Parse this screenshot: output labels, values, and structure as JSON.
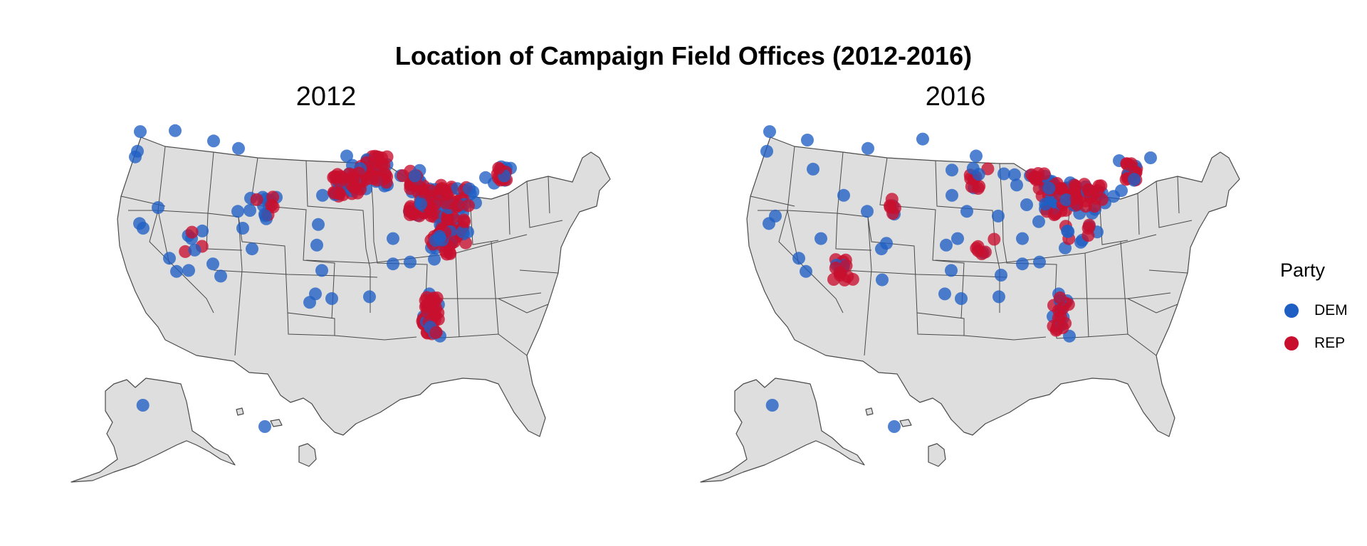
{
  "title": "Location of Campaign Field Offices (2012-2016)",
  "legend": {
    "title": "Party",
    "items": [
      {
        "label": "DEM",
        "color": "#1f5fc4"
      },
      {
        "label": "REP",
        "color": "#c8102e"
      }
    ]
  },
  "colors": {
    "DEM": "#1f5fc4",
    "REP": "#c8102e",
    "land": "#dedede",
    "border": "#4a4a4a"
  },
  "chart_data": {
    "type": "scatter",
    "panels": [
      {
        "label": "2012",
        "points": [
          [
            "DEM",
            -122.3,
            47.6
          ],
          [
            "DEM",
            -122.7,
            45.5
          ],
          [
            "DEM",
            -123.0,
            44.9
          ],
          [
            "DEM",
            -117.4,
            47.7
          ],
          [
            "DEM",
            -122.4,
            37.8
          ],
          [
            "DEM",
            -121.9,
            37.3
          ],
          [
            "DEM",
            -118.2,
            34.1
          ],
          [
            "DEM",
            -117.2,
            32.7
          ],
          [
            "DEM",
            -115.1,
            36.2
          ],
          [
            "DEM",
            -119.8,
            39.5
          ],
          [
            "DEM",
            -105.0,
            39.7
          ],
          [
            "DEM",
            -104.8,
            38.8
          ],
          [
            "DEM",
            -105.1,
            40.6
          ],
          [
            "DEM",
            -104.7,
            40.4
          ],
          [
            "DEM",
            -106.8,
            40.5
          ],
          [
            "DEM",
            -106.9,
            39.2
          ],
          [
            "DEM",
            -107.9,
            37.3
          ],
          [
            "DEM",
            -104.6,
            38.3
          ],
          [
            "DEM",
            -108.6,
            39.1
          ],
          [
            "DEM",
            -103.2,
            40.6
          ],
          [
            "DEM",
            -106.6,
            35.1
          ],
          [
            "DEM",
            -112.1,
            33.5
          ],
          [
            "DEM",
            -111.0,
            32.2
          ],
          [
            "DEM",
            -97.7,
            30.3
          ],
          [
            "DEM",
            -96.8,
            32.8
          ],
          [
            "DEM",
            -95.4,
            29.8
          ],
          [
            "DEM",
            -98.5,
            29.4
          ],
          [
            "DEM",
            -97.5,
            35.5
          ],
          [
            "DEM",
            -84.4,
            33.7
          ],
          [
            "DEM",
            -86.8,
            36.2
          ],
          [
            "DEM",
            -90.1,
            30.0
          ],
          [
            "DEM",
            -86.8,
            33.5
          ],
          [
            "DEM",
            -93.6,
            41.6
          ],
          [
            "DEM",
            -91.5,
            41.7
          ],
          [
            "DEM",
            -90.6,
            41.5
          ],
          [
            "DEM",
            -92.5,
            44.0
          ],
          [
            "DEM",
            -93.3,
            45.0
          ],
          [
            "DEM",
            -89.4,
            43.1
          ],
          [
            "DEM",
            -87.9,
            43.0
          ],
          [
            "DEM",
            -88.0,
            41.8
          ],
          [
            "DEM",
            -87.6,
            41.9
          ],
          [
            "DEM",
            -85.7,
            42.9
          ],
          [
            "DEM",
            -83.0,
            42.3
          ],
          [
            "DEM",
            -84.5,
            39.1
          ],
          [
            "DEM",
            -82.9,
            40.0
          ],
          [
            "DEM",
            -81.7,
            41.5
          ],
          [
            "DEM",
            -80.0,
            40.4
          ],
          [
            "DEM",
            -75.2,
            40.0
          ],
          [
            "DEM",
            -77.0,
            38.9
          ],
          [
            "DEM",
            -77.4,
            37.5
          ],
          [
            "DEM",
            -76.3,
            36.9
          ],
          [
            "DEM",
            -78.6,
            35.8
          ],
          [
            "DEM",
            -80.8,
            35.2
          ],
          [
            "DEM",
            -81.0,
            34.0
          ],
          [
            "DEM",
            -71.1,
            42.4
          ],
          [
            "DEM",
            -70.3,
            43.7
          ],
          [
            "DEM",
            -72.6,
            42.1
          ],
          [
            "DEM",
            -73.8,
            42.7
          ],
          [
            "DEM",
            -81.7,
            30.3
          ],
          [
            "DEM",
            -82.5,
            27.9
          ],
          [
            "DEM",
            -80.2,
            25.8
          ],
          [
            "DEM",
            -81.4,
            28.5
          ],
          [
            "DEM",
            -149.9,
            61.2
          ],
          [
            "DEM",
            -157.9,
            21.3
          ],
          [
            "DEM",
            -96.7,
            40.8
          ],
          [
            "DEM",
            -97.3,
            37.7
          ],
          [
            "DEM",
            -115.5,
            32.8
          ],
          [
            "DEM",
            -108.5,
            45.8
          ],
          [
            "DEM",
            -112.0,
            46.6
          ]
        ]
      },
      {
        "label": "2016",
        "points": [
          [
            "DEM",
            -122.3,
            47.6
          ],
          [
            "DEM",
            -122.7,
            45.5
          ],
          [
            "DEM",
            -117.0,
            46.7
          ],
          [
            "DEM",
            -116.2,
            43.6
          ],
          [
            "DEM",
            -122.4,
            37.8
          ],
          [
            "DEM",
            -121.5,
            38.6
          ],
          [
            "DEM",
            -118.2,
            34.1
          ],
          [
            "DEM",
            -117.2,
            32.7
          ],
          [
            "DEM",
            -115.1,
            36.2
          ],
          [
            "DEM",
            -111.9,
            40.8
          ],
          [
            "DEM",
            -105.0,
            39.7
          ],
          [
            "DEM",
            -104.8,
            38.8
          ],
          [
            "DEM",
            -108.6,
            39.1
          ],
          [
            "DEM",
            -106.6,
            35.1
          ],
          [
            "DEM",
            -105.9,
            35.7
          ],
          [
            "DEM",
            -106.5,
            31.8
          ],
          [
            "DEM",
            -97.7,
            30.3
          ],
          [
            "DEM",
            -96.8,
            32.8
          ],
          [
            "DEM",
            -95.4,
            29.8
          ],
          [
            "DEM",
            -97.5,
            35.5
          ],
          [
            "DEM",
            -95.9,
            36.2
          ],
          [
            "DEM",
            -93.6,
            41.6
          ],
          [
            "DEM",
            -96.7,
            40.8
          ],
          [
            "DEM",
            -94.6,
            39.1
          ],
          [
            "DEM",
            -90.2,
            38.6
          ],
          [
            "DEM",
            -93.3,
            45.0
          ],
          [
            "DEM",
            -89.4,
            43.1
          ],
          [
            "DEM",
            -87.9,
            43.0
          ],
          [
            "DEM",
            -87.6,
            41.9
          ],
          [
            "DEM",
            -86.2,
            39.8
          ],
          [
            "DEM",
            -85.7,
            42.9
          ],
          [
            "DEM",
            -83.0,
            42.3
          ],
          [
            "DEM",
            -82.9,
            40.0
          ],
          [
            "DEM",
            -81.7,
            41.5
          ],
          [
            "DEM",
            -80.0,
            40.4
          ],
          [
            "DEM",
            -75.2,
            40.0
          ],
          [
            "DEM",
            -76.6,
            39.3
          ],
          [
            "DEM",
            -77.0,
            38.9
          ],
          [
            "DEM",
            -77.4,
            37.5
          ],
          [
            "DEM",
            -76.3,
            36.9
          ],
          [
            "DEM",
            -78.6,
            35.8
          ],
          [
            "DEM",
            -80.8,
            35.2
          ],
          [
            "DEM",
            -84.4,
            33.7
          ],
          [
            "DEM",
            -81.7,
            30.3
          ],
          [
            "DEM",
            -82.5,
            27.9
          ],
          [
            "DEM",
            -80.2,
            25.8
          ],
          [
            "DEM",
            -81.4,
            28.5
          ],
          [
            "DEM",
            -71.1,
            42.4
          ],
          [
            "DEM",
            -71.5,
            43.0
          ],
          [
            "DEM",
            -73.2,
            44.5
          ],
          [
            "DEM",
            -68.8,
            44.8
          ],
          [
            "DEM",
            -72.9,
            41.3
          ],
          [
            "DEM",
            -74.0,
            40.7
          ],
          [
            "DEM",
            -90.1,
            30.0
          ],
          [
            "DEM",
            -86.8,
            33.5
          ],
          [
            "DEM",
            -157.9,
            21.3
          ],
          [
            "DEM",
            -149.9,
            61.2
          ],
          [
            "DEM",
            -108.5,
            45.8
          ],
          [
            "DEM",
            -100.8,
            46.8
          ],
          [
            "DEM",
            -96.7,
            43.5
          ],
          [
            "DEM",
            -84.5,
            38.0
          ],
          [
            "DEM",
            -86.8,
            36.2
          ],
          [
            "DEM",
            -92.3,
            34.7
          ],
          [
            "DEM",
            -89.8,
            32.3
          ]
        ]
      }
    ]
  }
}
